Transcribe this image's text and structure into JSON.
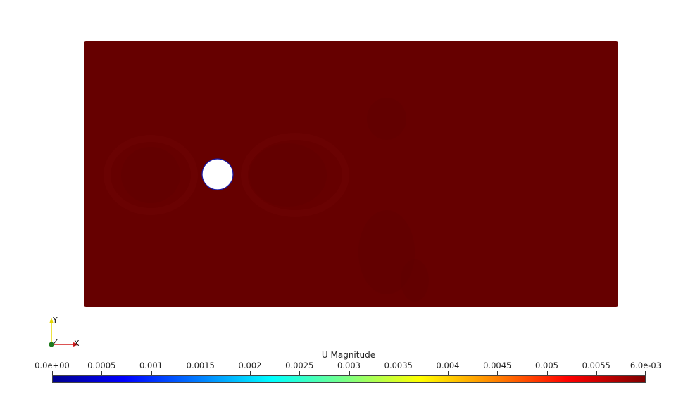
{
  "scene": {
    "background": "#ffffff",
    "field_color": "#660000",
    "field_accent_dark": "#5c0000",
    "field_accent_light": "#6e0404",
    "obstacle_fill": "#ffffff",
    "obstacle_stroke": "#1a1aa6"
  },
  "axes": {
    "y_label": "Y",
    "x_label": "X",
    "z_label": "Z",
    "y_color": "#e6d800",
    "x_color": "#d11a1a",
    "z_color": "#1f7a1f"
  },
  "colorbar": {
    "title": "U Magnitude",
    "min": 0.0,
    "max": 0.006,
    "colormap": "jet",
    "tick_labels": [
      "0.0e+00",
      "0.0005",
      "0.001",
      "0.0015",
      "0.002",
      "0.0025",
      "0.003",
      "0.0035",
      "0.004",
      "0.0045",
      "0.005",
      "0.0055",
      "6.0e-03"
    ],
    "tick_values": [
      0.0,
      0.0005,
      0.001,
      0.0015,
      0.002,
      0.0025,
      0.003,
      0.0035,
      0.004,
      0.0045,
      0.005,
      0.0055,
      0.006
    ]
  }
}
